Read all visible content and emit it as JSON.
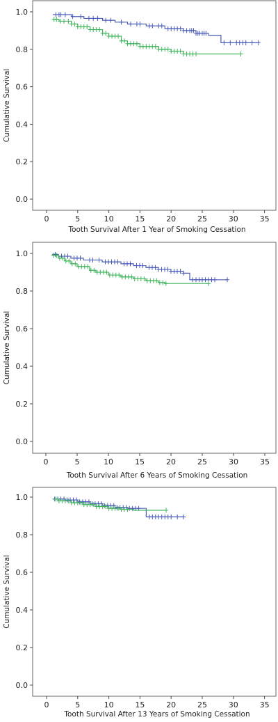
{
  "colors": {
    "series_a": "#4a5bb8",
    "series_b": "#3fb45c",
    "axis": "#444444",
    "frame": "#666666"
  },
  "chart_data": [
    {
      "type": "line",
      "subtype": "kaplan-meier",
      "title": "",
      "xlabel": "Tooth Survival After 1 Year of Smoking Cessation",
      "ylabel": "Cumulative Survival",
      "xlim": [
        0,
        35
      ],
      "ylim": [
        0.0,
        1.0
      ],
      "xticks": [
        "0",
        "5",
        "10",
        "15",
        "20",
        "25",
        "30",
        "35"
      ],
      "yticks": [
        "0.0",
        "0.2",
        "0.4",
        "0.6",
        "0.8",
        "1.0"
      ],
      "grid": false,
      "legend": "none",
      "series": [
        {
          "color": "#4a5bb8",
          "steps": [
            [
              1,
              0.985
            ],
            [
              4,
              0.975
            ],
            [
              6,
              0.965
            ],
            [
              9,
              0.955
            ],
            [
              11,
              0.945
            ],
            [
              13,
              0.935
            ],
            [
              16,
              0.925
            ],
            [
              19,
              0.91
            ],
            [
              22,
              0.9
            ],
            [
              24,
              0.885
            ],
            [
              26,
              0.875
            ],
            [
              28,
              0.835
            ],
            [
              34,
              0.835
            ]
          ],
          "censored": [
            1.5,
            2,
            2.3,
            3,
            4.2,
            5.5,
            6.8,
            7.5,
            8.2,
            9.5,
            10.3,
            12,
            13.5,
            14.5,
            15,
            16.5,
            17,
            18,
            18.5,
            19.5,
            20,
            20.5,
            21,
            21.5,
            22,
            22.5,
            23,
            23.3,
            23.6,
            24,
            24.3,
            24.6,
            25,
            25.3,
            25.6,
            28.5,
            29.5,
            30.5,
            31,
            31.5,
            32,
            33,
            34
          ]
        },
        {
          "color": "#3fb45c",
          "steps": [
            [
              1,
              0.96
            ],
            [
              2,
              0.95
            ],
            [
              4,
              0.935
            ],
            [
              5,
              0.92
            ],
            [
              7,
              0.905
            ],
            [
              9,
              0.885
            ],
            [
              10,
              0.87
            ],
            [
              12,
              0.845
            ],
            [
              13,
              0.83
            ],
            [
              15,
              0.815
            ],
            [
              18,
              0.8
            ],
            [
              20,
              0.79
            ],
            [
              22,
              0.775
            ],
            [
              31,
              0.775
            ]
          ],
          "censored": [
            1.2,
            1.6,
            2.2,
            2.8,
            3.5,
            4,
            4.5,
            5,
            5.5,
            6,
            6.5,
            7,
            7.5,
            8,
            8.5,
            9,
            9.5,
            10,
            10.5,
            11,
            11.5,
            12,
            12.5,
            13,
            13.5,
            14,
            14.5,
            15,
            15.5,
            16,
            16.5,
            17,
            17.5,
            18,
            18.5,
            19,
            19.5,
            20,
            20.5,
            21,
            21.5,
            22,
            22.5,
            23,
            23.5,
            24,
            31.2
          ]
        }
      ]
    },
    {
      "type": "line",
      "subtype": "kaplan-meier",
      "title": "",
      "xlabel": "Tooth Survival After 6 Years of Smoking Cessation",
      "ylabel": "Cumulative Survival",
      "xlim": [
        0,
        35
      ],
      "ylim": [
        0.0,
        1.0
      ],
      "xticks": [
        "0",
        "5",
        "10",
        "15",
        "20",
        "25",
        "30",
        "35"
      ],
      "yticks": [
        "0.0",
        "0.2",
        "0.4",
        "0.6",
        "0.8",
        "1.0"
      ],
      "grid": false,
      "legend": "none",
      "series": [
        {
          "color": "#4a5bb8",
          "steps": [
            [
              1,
              0.995
            ],
            [
              2,
              0.985
            ],
            [
              4,
              0.975
            ],
            [
              6,
              0.965
            ],
            [
              9,
              0.955
            ],
            [
              12,
              0.945
            ],
            [
              14,
              0.935
            ],
            [
              16,
              0.925
            ],
            [
              18,
              0.915
            ],
            [
              20,
              0.905
            ],
            [
              22,
              0.895
            ],
            [
              23,
              0.86
            ],
            [
              29,
              0.86
            ]
          ],
          "censored": [
            1.5,
            2.5,
            3,
            3.5,
            4.5,
            5,
            5.5,
            7,
            7.5,
            8.5,
            9.5,
            10,
            10.5,
            11,
            11.5,
            12.5,
            13,
            13.5,
            14.5,
            15,
            15.5,
            16.5,
            17,
            17.5,
            18,
            18.5,
            19,
            19.5,
            20,
            20.5,
            21,
            21.5,
            22,
            23.5,
            24,
            24.5,
            25,
            25.5,
            26,
            26.5,
            27,
            29
          ]
        },
        {
          "color": "#3fb45c",
          "steps": [
            [
              1,
              0.99
            ],
            [
              2,
              0.975
            ],
            [
              3,
              0.96
            ],
            [
              4,
              0.945
            ],
            [
              5,
              0.93
            ],
            [
              7,
              0.91
            ],
            [
              8,
              0.9
            ],
            [
              10,
              0.885
            ],
            [
              12,
              0.875
            ],
            [
              14,
              0.865
            ],
            [
              16,
              0.855
            ],
            [
              18,
              0.845
            ],
            [
              19,
              0.84
            ],
            [
              26,
              0.84
            ]
          ],
          "censored": [
            1.2,
            1.7,
            2.2,
            2.7,
            3.2,
            3.7,
            4.2,
            4.7,
            5.2,
            5.7,
            6.2,
            6.7,
            7.2,
            7.7,
            8.2,
            8.7,
            9.2,
            9.7,
            10.2,
            10.7,
            11.2,
            11.7,
            12.2,
            12.7,
            13.2,
            13.7,
            14.2,
            14.7,
            15.2,
            15.7,
            16.2,
            16.7,
            17.2,
            17.7,
            18.2,
            18.7,
            19.2,
            26
          ]
        }
      ]
    },
    {
      "type": "line",
      "subtype": "kaplan-meier",
      "title": "",
      "xlabel": "Tooth Survival After 13 Years of Smoking Cessation",
      "ylabel": "Cumulative Survival",
      "xlim": [
        0,
        35
      ],
      "ylim": [
        0.0,
        1.0
      ],
      "xticks": [
        "0",
        "5",
        "10",
        "15",
        "20",
        "25",
        "30",
        "35"
      ],
      "yticks": [
        "0.0",
        "0.2",
        "0.4",
        "0.6",
        "0.8",
        "1.0"
      ],
      "grid": false,
      "legend": "none",
      "series": [
        {
          "color": "#4a5bb8",
          "steps": [
            [
              1,
              0.99
            ],
            [
              3,
              0.985
            ],
            [
              5,
              0.975
            ],
            [
              7,
              0.965
            ],
            [
              9,
              0.955
            ],
            [
              11,
              0.945
            ],
            [
              13,
              0.94
            ],
            [
              16,
              0.895
            ],
            [
              22,
              0.895
            ]
          ],
          "censored": [
            1.3,
            1.8,
            2.3,
            2.8,
            3.3,
            3.8,
            4.3,
            4.8,
            5.3,
            5.8,
            6.3,
            6.8,
            7.3,
            7.8,
            8.3,
            8.8,
            9.3,
            9.8,
            10.3,
            10.8,
            11.3,
            11.8,
            12.3,
            12.8,
            13.3,
            13.8,
            14.3,
            14.8,
            16.5,
            17,
            17.5,
            18,
            18.5,
            19,
            19.5,
            20,
            21,
            22
          ]
        },
        {
          "color": "#3fb45c",
          "steps": [
            [
              1,
              0.99
            ],
            [
              2,
              0.98
            ],
            [
              4,
              0.97
            ],
            [
              6,
              0.96
            ],
            [
              8,
              0.95
            ],
            [
              10,
              0.94
            ],
            [
              12,
              0.935
            ],
            [
              14,
              0.93
            ],
            [
              19,
              0.93
            ]
          ],
          "censored": [
            1.5,
            2,
            2.5,
            3,
            3.5,
            4,
            4.5,
            5,
            5.5,
            6,
            6.5,
            7,
            7.5,
            8,
            8.5,
            9,
            9.5,
            10,
            10.5,
            11,
            11.5,
            12,
            12.5,
            13,
            19.2
          ]
        }
      ]
    }
  ]
}
